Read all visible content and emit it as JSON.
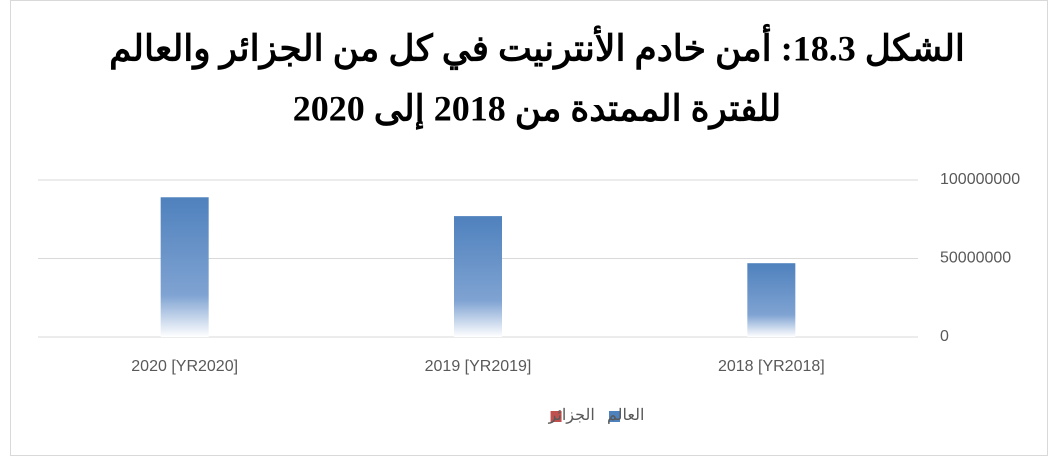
{
  "chart_data": {
    "type": "bar",
    "title": [
      "الشكل 18.3: أمن خادم الأنترنيت في كل من الجزائر والعالم",
      "للفترة الممتدة من 2018 إلى 2020"
    ],
    "categories": [
      "2018 [YR2018]",
      "2019 [YR2019]",
      "2020 [YR2020]"
    ],
    "series": [
      {
        "name": "العالم",
        "color": "#4f81bd",
        "values": [
          47000000,
          77000000,
          89000000
        ]
      },
      {
        "name": "الجزائر",
        "color": "#c0504d",
        "values": [
          0,
          0,
          0
        ]
      }
    ],
    "ylim": [
      0,
      100000000
    ],
    "yticks": [
      0,
      50000000,
      100000000
    ],
    "grid": true,
    "x_reversed": true,
    "yaxis_side": "right",
    "legend": "bottom"
  }
}
